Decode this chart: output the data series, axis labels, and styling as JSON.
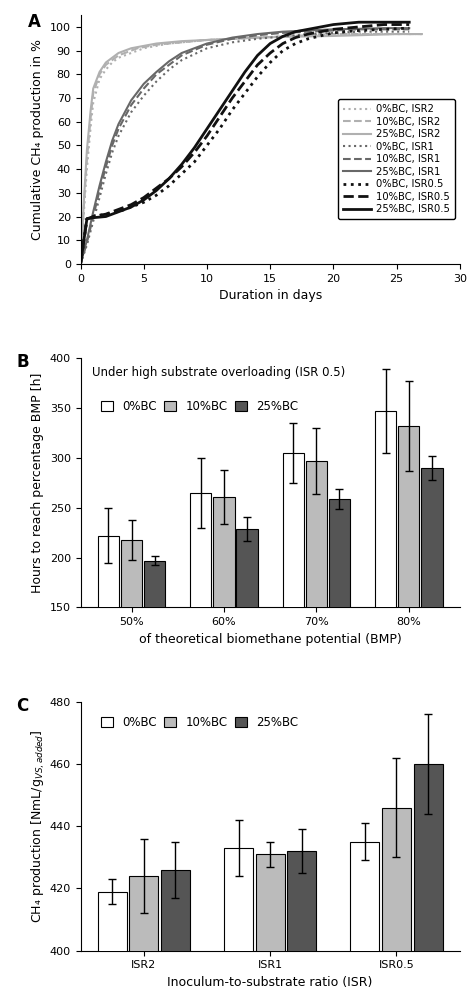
{
  "panel_A": {
    "title_label": "A",
    "xlabel": "Duration in days",
    "ylabel": "Cumulative CH₄ production in %",
    "xlim": [
      0,
      30
    ],
    "ylim": [
      0,
      105
    ],
    "xticks": [
      0,
      5,
      10,
      15,
      20,
      25,
      30
    ],
    "yticks": [
      0,
      10,
      20,
      30,
      40,
      50,
      60,
      70,
      80,
      90,
      100
    ],
    "series": [
      {
        "label": "0%BC, ISR2",
        "color": "#b0b0b0",
        "linestyle": "dotted",
        "linewidth": 1.5,
        "x": [
          0,
          0.3,
          0.5,
          0.8,
          1,
          1.5,
          2,
          2.5,
          3,
          3.5,
          4,
          4.5,
          5,
          6,
          7,
          8,
          10,
          12,
          14,
          16,
          18,
          20,
          22,
          25,
          27
        ],
        "y": [
          0,
          25,
          40,
          58,
          68,
          78,
          82,
          85,
          87,
          88,
          89,
          90,
          91,
          92,
          93,
          93.5,
          94.5,
          95,
          95.5,
          96,
          96.5,
          97,
          97,
          97,
          97
        ]
      },
      {
        "label": "10%BC, ISR2",
        "color": "#b0b0b0",
        "linestyle": "dashed",
        "linewidth": 1.5,
        "x": [
          0,
          0.3,
          0.5,
          0.8,
          1,
          1.5,
          2,
          2.5,
          3,
          3.5,
          4,
          4.5,
          5,
          6,
          7,
          8,
          10,
          12,
          14,
          16,
          18,
          20,
          22,
          25,
          27
        ],
        "y": [
          0,
          28,
          44,
          62,
          72,
          80,
          84,
          86,
          88,
          89,
          90,
          91,
          91.5,
          92.5,
          93,
          93.5,
          94.5,
          95,
          95.5,
          96,
          96.5,
          97,
          97,
          97,
          97
        ]
      },
      {
        "label": "25%BC, ISR2",
        "color": "#b0b0b0",
        "linestyle": "solid",
        "linewidth": 1.5,
        "x": [
          0,
          0.3,
          0.5,
          0.8,
          1,
          1.5,
          2,
          2.5,
          3,
          3.5,
          4,
          4.5,
          5,
          6,
          7,
          8,
          10,
          12,
          14,
          16,
          18,
          20,
          22,
          25,
          27
        ],
        "y": [
          0,
          30,
          48,
          65,
          74,
          81,
          85,
          87,
          89,
          90,
          91,
          91.5,
          92,
          93,
          93.5,
          94,
          94.5,
          95,
          95.5,
          95.8,
          96,
          96.2,
          96.5,
          97,
          97
        ]
      },
      {
        "label": "0%BC, ISR1",
        "color": "#686868",
        "linestyle": "dotted",
        "linewidth": 1.5,
        "x": [
          0,
          0.5,
          1,
          1.5,
          2,
          2.5,
          3,
          4,
          5,
          6,
          7,
          8,
          10,
          12,
          14,
          16,
          18,
          20,
          22,
          24,
          26
        ],
        "y": [
          0,
          8,
          18,
          28,
          38,
          47,
          54,
          64,
          71,
          77,
          82,
          86,
          91,
          93.5,
          95,
          96,
          97,
          97.5,
          98,
          98,
          98
        ]
      },
      {
        "label": "10%BC, ISR1",
        "color": "#686868",
        "linestyle": "dashed",
        "linewidth": 1.5,
        "x": [
          0,
          0.5,
          1,
          1.5,
          2,
          2.5,
          3,
          4,
          5,
          6,
          7,
          8,
          10,
          12,
          14,
          16,
          18,
          20,
          22,
          24,
          26
        ],
        "y": [
          0,
          9,
          20,
          31,
          41,
          50,
          57,
          67,
          74,
          80,
          84,
          88,
          92.5,
          95,
          96.5,
          97.5,
          98,
          98.5,
          99,
          99,
          99
        ]
      },
      {
        "label": "25%BC, ISR1",
        "color": "#686868",
        "linestyle": "solid",
        "linewidth": 1.5,
        "x": [
          0,
          0.5,
          1,
          1.5,
          2,
          2.5,
          3,
          4,
          5,
          6,
          7,
          8,
          10,
          12,
          14,
          16,
          18,
          20,
          22,
          24,
          26
        ],
        "y": [
          0,
          10,
          22,
          33,
          43,
          52,
          59,
          69,
          76,
          81,
          85.5,
          89,
          93,
          95.5,
          97,
          98,
          98.5,
          99,
          99.2,
          99.5,
          99.5
        ]
      },
      {
        "label": "0%BC, ISR0.5",
        "color": "#111111",
        "linestyle": "dotted",
        "linewidth": 2.0,
        "x": [
          0,
          0.5,
          1,
          2,
          3,
          4,
          5,
          6,
          7,
          8,
          9,
          10,
          11,
          12,
          13,
          14,
          15,
          16,
          17,
          18,
          20,
          22,
          24,
          26
        ],
        "y": [
          0,
          19,
          20,
          21,
          22,
          24,
          26,
          29,
          33,
          38,
          43,
          50,
          57,
          65,
          72,
          79,
          85,
          90,
          93,
          95,
          97.5,
          98.5,
          99,
          99.5
        ]
      },
      {
        "label": "10%BC, ISR0.5",
        "color": "#111111",
        "linestyle": "dashed",
        "linewidth": 2.0,
        "x": [
          0,
          0.5,
          1,
          2,
          3,
          4,
          5,
          6,
          7,
          8,
          9,
          10,
          11,
          12,
          13,
          14,
          15,
          16,
          17,
          18,
          20,
          22,
          24,
          26
        ],
        "y": [
          0,
          19,
          20,
          21,
          23,
          25,
          28,
          32,
          36,
          41,
          47,
          54,
          62,
          70,
          77,
          84,
          89,
          93,
          95.5,
          97,
          99,
          100,
          101,
          101
        ]
      },
      {
        "label": "25%BC, ISR0.5",
        "color": "#111111",
        "linestyle": "solid",
        "linewidth": 2.0,
        "x": [
          0,
          0.5,
          1,
          2,
          3,
          4,
          5,
          6,
          7,
          8,
          9,
          10,
          11,
          12,
          13,
          14,
          15,
          16,
          17,
          18,
          20,
          22,
          24,
          26
        ],
        "y": [
          0,
          19,
          19.5,
          20,
          22,
          24,
          27,
          31,
          36,
          42,
          49,
          57,
          65,
          73,
          81,
          88,
          93,
          96,
          98,
          99,
          101,
          102,
          102,
          102
        ]
      }
    ]
  },
  "panel_B": {
    "title_label": "B",
    "xlabel": "of theoretical biomethane potential (BMP)",
    "ylabel": "Hours to reach percentage BMP [h]",
    "annotation": "Under high substrate overloading (ISR 0.5)",
    "ylim": [
      150,
      400
    ],
    "yticks": [
      150,
      200,
      250,
      300,
      350,
      400
    ],
    "categories": [
      "50%",
      "60%",
      "70%",
      "80%"
    ],
    "bar_colors": [
      "#ffffff",
      "#bbbbbb",
      "#555555"
    ],
    "bar_labels": [
      "0%BC",
      "10%BC",
      "25%BC"
    ],
    "bar_width": 0.25,
    "values": [
      [
        222,
        218,
        197
      ],
      [
        265,
        261,
        229
      ],
      [
        305,
        297,
        259
      ],
      [
        347,
        332,
        290
      ]
    ],
    "errors": [
      [
        28,
        20,
        5
      ],
      [
        35,
        27,
        12
      ],
      [
        30,
        33,
        10
      ],
      [
        42,
        45,
        12
      ]
    ]
  },
  "panel_C": {
    "title_label": "C",
    "xlabel": "Inoculum-to-substrate ratio (ISR)",
    "ylabel": "CH₄ production [NmL/g$_{VS, added}$]",
    "ylim": [
      400,
      480
    ],
    "yticks": [
      400,
      420,
      440,
      460,
      480
    ],
    "categories": [
      "ISR2",
      "ISR1",
      "ISR0.5"
    ],
    "bar_colors": [
      "#ffffff",
      "#bbbbbb",
      "#555555"
    ],
    "bar_labels": [
      "0%BC",
      "10%BC",
      "25%BC"
    ],
    "bar_width": 0.25,
    "values": [
      [
        419,
        424,
        426
      ],
      [
        433,
        431,
        432
      ],
      [
        435,
        446,
        460
      ]
    ],
    "errors": [
      [
        4,
        12,
        9
      ],
      [
        9,
        4,
        7
      ],
      [
        6,
        16,
        16
      ]
    ]
  }
}
